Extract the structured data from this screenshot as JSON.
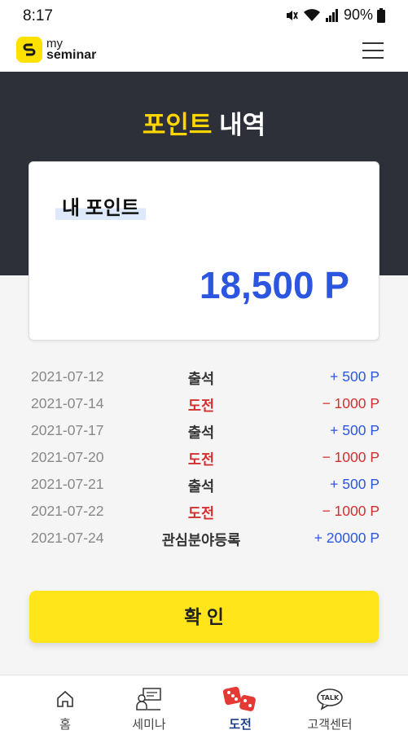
{
  "status_bar": {
    "time": "8:17",
    "battery": "90%"
  },
  "header": {
    "logo_line1": "my",
    "logo_line2": "seminar"
  },
  "hero": {
    "title_accent": "포인트",
    "title_rest": "내역"
  },
  "point_card": {
    "label": "내 포인트",
    "value": "18,500 P"
  },
  "history": [
    {
      "date": "2021-07-12",
      "type": "출석",
      "amount": "+ 500 P",
      "kind": "attendance"
    },
    {
      "date": "2021-07-14",
      "type": "도전",
      "amount": "− 1000 P",
      "kind": "challenge"
    },
    {
      "date": "2021-07-17",
      "type": "출석",
      "amount": "+ 500 P",
      "kind": "attendance"
    },
    {
      "date": "2021-07-20",
      "type": "도전",
      "amount": "− 1000 P",
      "kind": "challenge"
    },
    {
      "date": "2021-07-21",
      "type": "출석",
      "amount": "+ 500 P",
      "kind": "attendance"
    },
    {
      "date": "2021-07-22",
      "type": "도전",
      "amount": "− 1000 P",
      "kind": "challenge"
    },
    {
      "date": "2021-07-24",
      "type": "관심분야등록",
      "amount": "+ 20000 P",
      "kind": "interest"
    }
  ],
  "confirm_label": "확 인",
  "nav": [
    {
      "label": "홈",
      "icon": "home-icon"
    },
    {
      "label": "세미나",
      "icon": "seminar-icon"
    },
    {
      "label": "도전",
      "icon": "dice-icon",
      "active": true
    },
    {
      "label": "고객센터",
      "icon": "talk-icon"
    }
  ],
  "colors": {
    "accent_yellow": "#ffe51a",
    "points_blue": "#2d56e0",
    "minus_red": "#d32f2f",
    "hero_dark": "#2d3039"
  }
}
